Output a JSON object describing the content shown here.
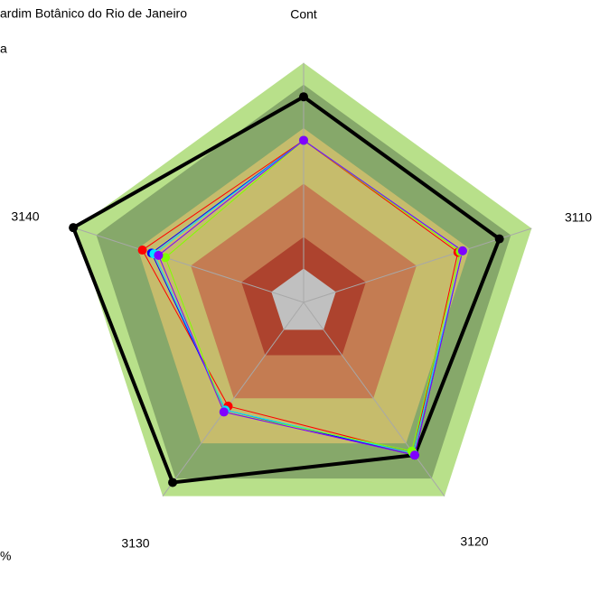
{
  "chart_data": {
    "type": "radar",
    "title": "ardim Botânico do Rio de Janeiro",
    "subtitle": "a",
    "footnote": "%",
    "categories": [
      "Cont",
      "3110",
      "3120",
      "3130",
      "3140"
    ],
    "rlim": [
      0,
      1
    ],
    "bands": [
      {
        "value": 0.99,
        "color": "#b8e08a"
      },
      {
        "value": 0.9,
        "color": "#86a86a"
      },
      {
        "value": 0.72,
        "color": "#c6bc6c"
      },
      {
        "value": 0.49,
        "color": "#c47c52"
      },
      {
        "value": 0.27,
        "color": "#ad432e"
      },
      {
        "value": 0.14,
        "color": "#c0c0c0"
      }
    ],
    "series": [
      {
        "color": "#000000",
        "values": [
          0.85,
          0.85,
          0.78,
          0.92,
          1.0
        ]
      },
      {
        "color": "#ff0000",
        "values": [
          0.67,
          0.67,
          0.77,
          0.53,
          0.7
        ]
      },
      {
        "color": "#0000ff",
        "values": [
          0.67,
          0.69,
          0.78,
          0.55,
          0.66
        ]
      },
      {
        "color": "#00e5ff",
        "values": [
          0.67,
          0.69,
          0.77,
          0.55,
          0.65
        ]
      },
      {
        "color": "#80ff00",
        "values": [
          0.67,
          0.68,
          0.76,
          0.56,
          0.6
        ]
      },
      {
        "color": "#8000ff",
        "values": [
          0.67,
          0.69,
          0.78,
          0.56,
          0.63
        ]
      }
    ]
  }
}
